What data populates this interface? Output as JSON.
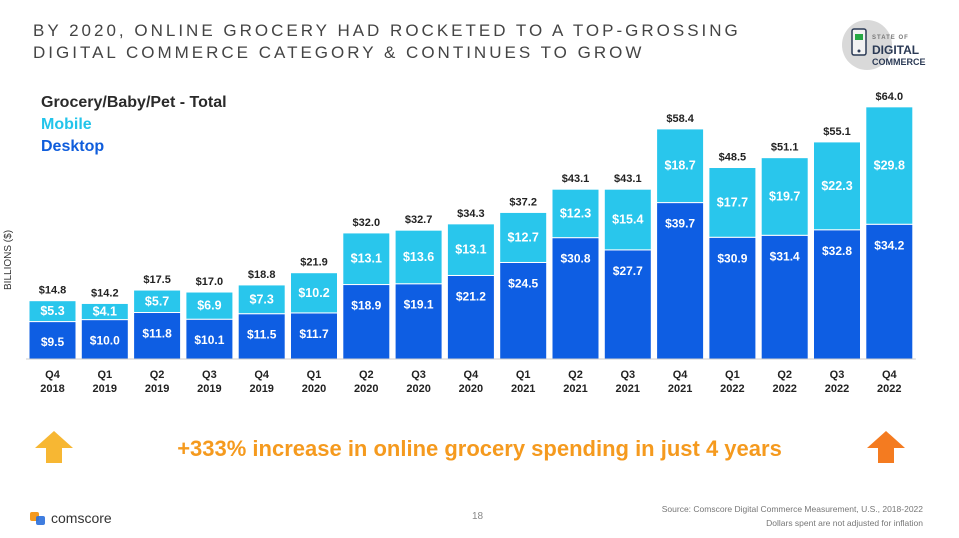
{
  "title": {
    "line1": "BY 2020, ONLINE GROCERY HAD ROCKETED TO A TOP-GROSSING",
    "line2": "DIGITAL COMMERCE CATEGORY & CONTINUES TO GROW"
  },
  "badge": {
    "line1": "STATE OF",
    "line2": "DIGITAL",
    "line3": "COMMERCE"
  },
  "legend": {
    "total": "Grocery/Baby/Pet - Total",
    "mobile": "Mobile",
    "desktop": "Desktop"
  },
  "colors": {
    "mobile": "#29c6ec",
    "desktop": "#0e5ee3",
    "highlight": "#f59a1e"
  },
  "chart_data": {
    "type": "bar",
    "stacked": true,
    "title": "Grocery/Baby/Pet - Total",
    "ylabel": "BILLIONS ($)",
    "xlabel": "",
    "ylim": [
      0,
      70
    ],
    "categories": [
      [
        "Q4",
        "2018"
      ],
      [
        "Q1",
        "2019"
      ],
      [
        "Q2",
        "2019"
      ],
      [
        "Q3",
        "2019"
      ],
      [
        "Q4",
        "2019"
      ],
      [
        "Q1",
        "2020"
      ],
      [
        "Q2",
        "2020"
      ],
      [
        "Q3",
        "2020"
      ],
      [
        "Q4",
        "2020"
      ],
      [
        "Q1",
        "2021"
      ],
      [
        "Q2",
        "2021"
      ],
      [
        "Q3",
        "2021"
      ],
      [
        "Q4",
        "2021"
      ],
      [
        "Q1",
        "2022"
      ],
      [
        "Q2",
        "2022"
      ],
      [
        "Q3",
        "2022"
      ],
      [
        "Q4",
        "2022"
      ]
    ],
    "series": [
      {
        "name": "Desktop",
        "values": [
          9.5,
          10.0,
          11.8,
          10.1,
          11.5,
          11.7,
          18.9,
          19.1,
          21.2,
          24.5,
          30.8,
          27.7,
          39.7,
          30.9,
          31.4,
          32.8,
          34.2
        ],
        "labels": [
          "$9.5",
          "$10.0",
          "$11.8",
          "$10.1",
          "$11.5",
          "$11.7",
          "$18.9",
          "$19.1",
          "$21.2",
          "$24.5",
          "$30.8",
          "$27.7",
          "$39.7",
          "$30.9",
          "$31.4",
          "$32.8",
          "$34.2"
        ]
      },
      {
        "name": "Mobile",
        "values": [
          5.3,
          4.1,
          5.7,
          6.9,
          7.3,
          10.2,
          13.1,
          13.6,
          13.1,
          12.7,
          12.3,
          15.4,
          18.7,
          17.7,
          19.7,
          22.3,
          29.8
        ],
        "labels": [
          "$5.3",
          "$4.1",
          "$5.7",
          "$6.9",
          "$7.3",
          "$10.2",
          "$13.1",
          "$13.6",
          "$13.1",
          "$12.7",
          "$12.3",
          "$15.4",
          "$18.7",
          "$17.7",
          "$19.7",
          "$22.3",
          "$29.8"
        ]
      }
    ],
    "totals": [
      14.8,
      14.2,
      17.5,
      17.0,
      18.8,
      21.9,
      32.0,
      32.7,
      34.3,
      37.2,
      43.1,
      43.1,
      58.4,
      48.5,
      51.1,
      55.1,
      64.0
    ],
    "total_labels": [
      "$14.8",
      "$14.2",
      "$17.5",
      "$17.0",
      "$18.8",
      "$21.9",
      "$32.0",
      "$32.7",
      "$34.3",
      "$37.2",
      "$43.1",
      "$43.1",
      "$58.4",
      "$48.5",
      "$51.1",
      "$55.1",
      "$64.0"
    ]
  },
  "headline": "+333% increase in online grocery spending in just 4 years",
  "footer": {
    "logo": "comscore",
    "page": "18",
    "source": "Source: Comscore Digital Commerce Measurement, U.S., 2018-2022",
    "note": "Dollars spent are not adjusted for inflation"
  }
}
